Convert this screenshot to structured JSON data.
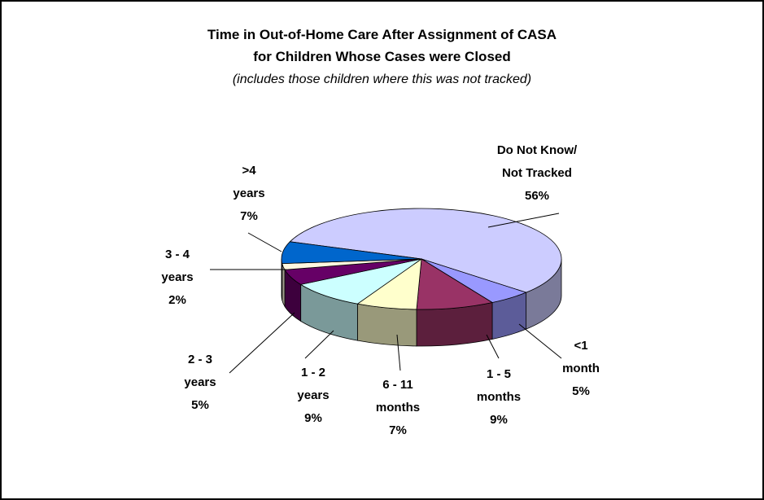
{
  "chart_data": {
    "type": "pie3d",
    "title": "Time in Out-of-Home Care After Assignment of CASA",
    "subtitle": "for Children Whose Cases were Closed",
    "note": "(includes those children where this was not tracked)",
    "categories": [
      "Do Not Know/\nNot Tracked",
      "<1\nmonth",
      "1 - 5\nmonths",
      "6 - 11\nmonths",
      "1 - 2\nyears",
      "2 - 3\nyears",
      "3 - 4\nyears",
      ">4\nyears"
    ],
    "values": [
      56,
      5,
      9,
      7,
      9,
      5,
      2,
      7
    ],
    "value_labels": [
      "56%",
      "5%",
      "9%",
      "7%",
      "9%",
      "5%",
      "2%",
      "7%"
    ],
    "colors": [
      "#ccccff",
      "#9999ff",
      "#993366",
      "#ffffcc",
      "#ccffff",
      "#660066",
      "#fff8e0",
      "#0066cc"
    ]
  }
}
